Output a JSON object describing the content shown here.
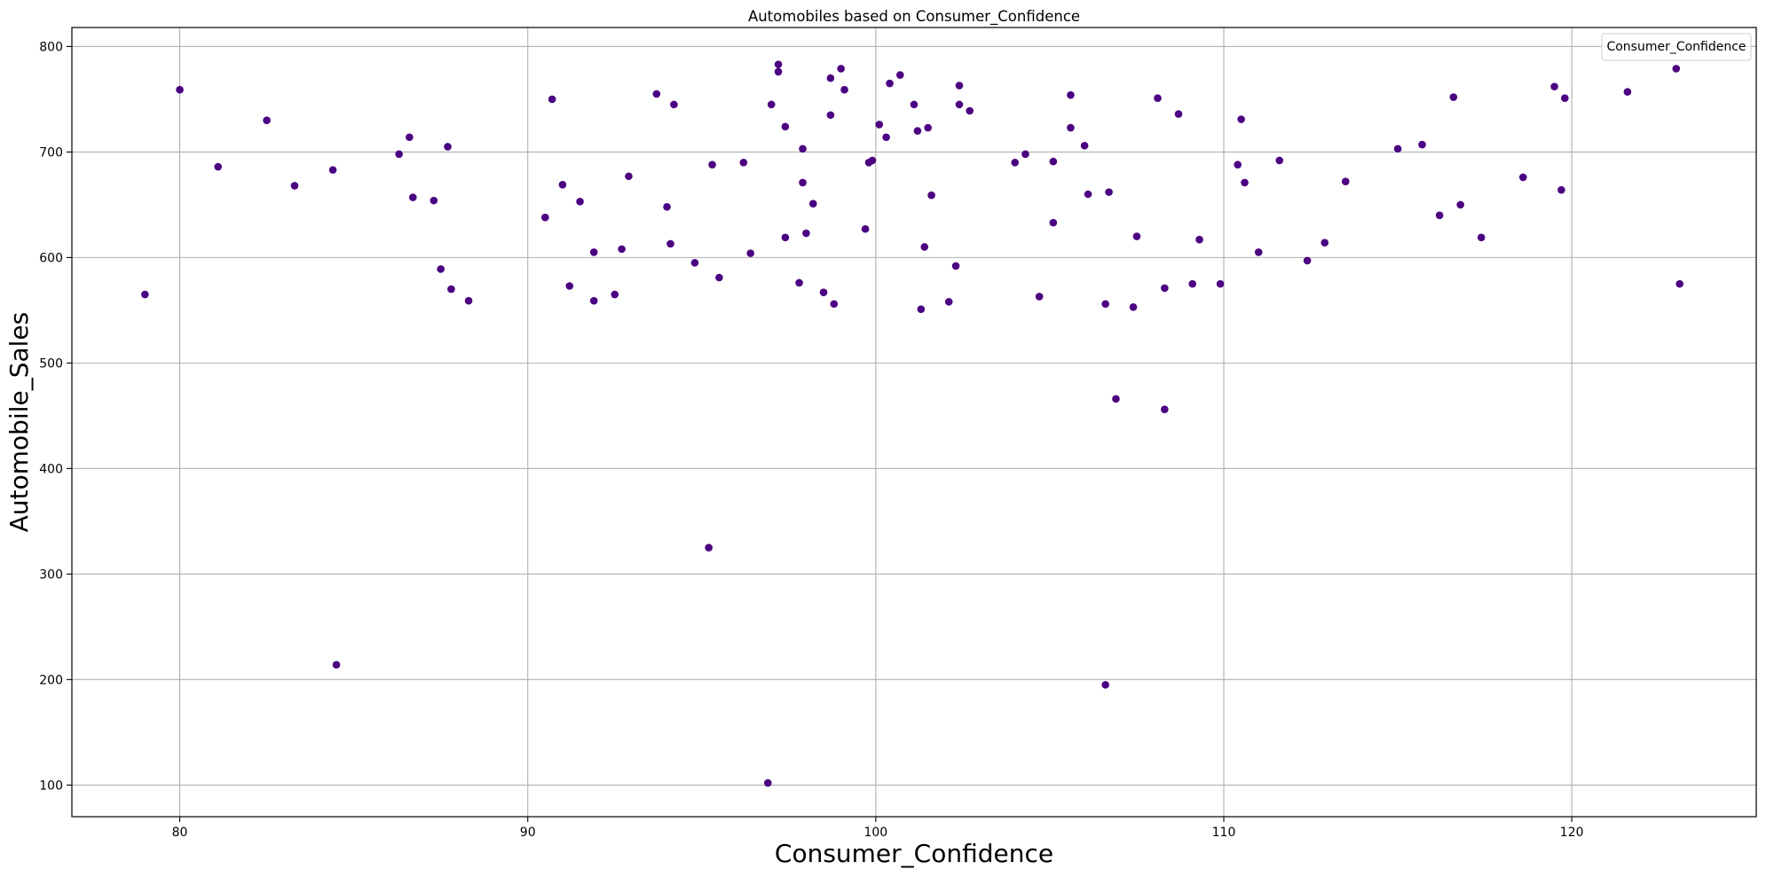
{
  "chart_data": {
    "type": "scatter",
    "title": "Automobiles based on Consumer_Confidence",
    "xlabel": "Consumer_Confidence",
    "ylabel": "Automobile_Sales",
    "legend_title": "Consumer_Confidence",
    "legend_position": "top-right",
    "grid": true,
    "xlim": [
      76.9,
      125.3
    ],
    "ylim": [
      70,
      818
    ],
    "x_ticks": [
      80,
      90,
      100,
      110,
      120
    ],
    "y_ticks": [
      100,
      200,
      300,
      400,
      500,
      600,
      700,
      800
    ],
    "marker_color": "#4b0082",
    "points": [
      [
        79.0,
        565
      ],
      [
        80.0,
        759
      ],
      [
        81.1,
        686
      ],
      [
        82.5,
        730
      ],
      [
        83.3,
        668
      ],
      [
        84.4,
        683
      ],
      [
        84.5,
        214
      ],
      [
        86.3,
        698
      ],
      [
        86.6,
        714
      ],
      [
        86.7,
        657
      ],
      [
        87.3,
        654
      ],
      [
        87.5,
        589
      ],
      [
        87.7,
        705
      ],
      [
        87.8,
        570
      ],
      [
        88.3,
        559
      ],
      [
        90.5,
        638
      ],
      [
        90.7,
        750
      ],
      [
        91.0,
        669
      ],
      [
        91.2,
        573
      ],
      [
        91.5,
        653
      ],
      [
        91.9,
        605
      ],
      [
        91.9,
        559
      ],
      [
        92.5,
        565
      ],
      [
        92.7,
        608
      ],
      [
        92.9,
        677
      ],
      [
        93.7,
        755
      ],
      [
        94.0,
        648
      ],
      [
        94.1,
        613
      ],
      [
        94.2,
        745
      ],
      [
        94.8,
        595
      ],
      [
        95.2,
        325
      ],
      [
        95.3,
        688
      ],
      [
        95.5,
        581
      ],
      [
        96.2,
        690
      ],
      [
        96.4,
        604
      ],
      [
        96.9,
        102
      ],
      [
        97.0,
        745
      ],
      [
        97.2,
        783
      ],
      [
        97.2,
        776
      ],
      [
        97.4,
        724
      ],
      [
        97.4,
        619
      ],
      [
        97.8,
        576
      ],
      [
        97.9,
        703
      ],
      [
        97.9,
        671
      ],
      [
        98.0,
        623
      ],
      [
        98.2,
        651
      ],
      [
        98.5,
        567
      ],
      [
        98.7,
        770
      ],
      [
        98.7,
        735
      ],
      [
        98.8,
        556
      ],
      [
        99.0,
        779
      ],
      [
        99.1,
        759
      ],
      [
        99.7,
        627
      ],
      [
        99.8,
        690
      ],
      [
        99.9,
        692
      ],
      [
        100.1,
        726
      ],
      [
        100.3,
        714
      ],
      [
        100.4,
        765
      ],
      [
        100.7,
        773
      ],
      [
        101.1,
        745
      ],
      [
        101.2,
        720
      ],
      [
        101.3,
        551
      ],
      [
        101.4,
        610
      ],
      [
        101.5,
        723
      ],
      [
        101.6,
        659
      ],
      [
        102.1,
        558
      ],
      [
        102.3,
        592
      ],
      [
        102.4,
        763
      ],
      [
        102.4,
        745
      ],
      [
        102.7,
        739
      ],
      [
        104.0,
        690
      ],
      [
        104.3,
        698
      ],
      [
        104.7,
        563
      ],
      [
        105.1,
        691
      ],
      [
        105.1,
        633
      ],
      [
        105.6,
        723
      ],
      [
        105.6,
        754
      ],
      [
        106.0,
        706
      ],
      [
        106.1,
        660
      ],
      [
        106.6,
        556
      ],
      [
        106.6,
        195
      ],
      [
        106.7,
        662
      ],
      [
        106.9,
        466
      ],
      [
        107.4,
        553
      ],
      [
        107.5,
        620
      ],
      [
        108.1,
        751
      ],
      [
        108.3,
        571
      ],
      [
        108.3,
        456
      ],
      [
        108.7,
        736
      ],
      [
        109.1,
        575
      ],
      [
        109.3,
        617
      ],
      [
        109.9,
        575
      ],
      [
        110.4,
        688
      ],
      [
        110.5,
        731
      ],
      [
        110.6,
        671
      ],
      [
        111.0,
        605
      ],
      [
        111.6,
        692
      ],
      [
        112.4,
        597
      ],
      [
        112.9,
        614
      ],
      [
        113.5,
        672
      ],
      [
        115.0,
        703
      ],
      [
        115.7,
        707
      ],
      [
        116.2,
        640
      ],
      [
        116.6,
        752
      ],
      [
        116.8,
        650
      ],
      [
        117.4,
        619
      ],
      [
        118.6,
        676
      ],
      [
        119.5,
        762
      ],
      [
        119.7,
        664
      ],
      [
        119.8,
        751
      ],
      [
        121.6,
        757
      ],
      [
        123.0,
        779
      ],
      [
        123.1,
        575
      ]
    ]
  }
}
